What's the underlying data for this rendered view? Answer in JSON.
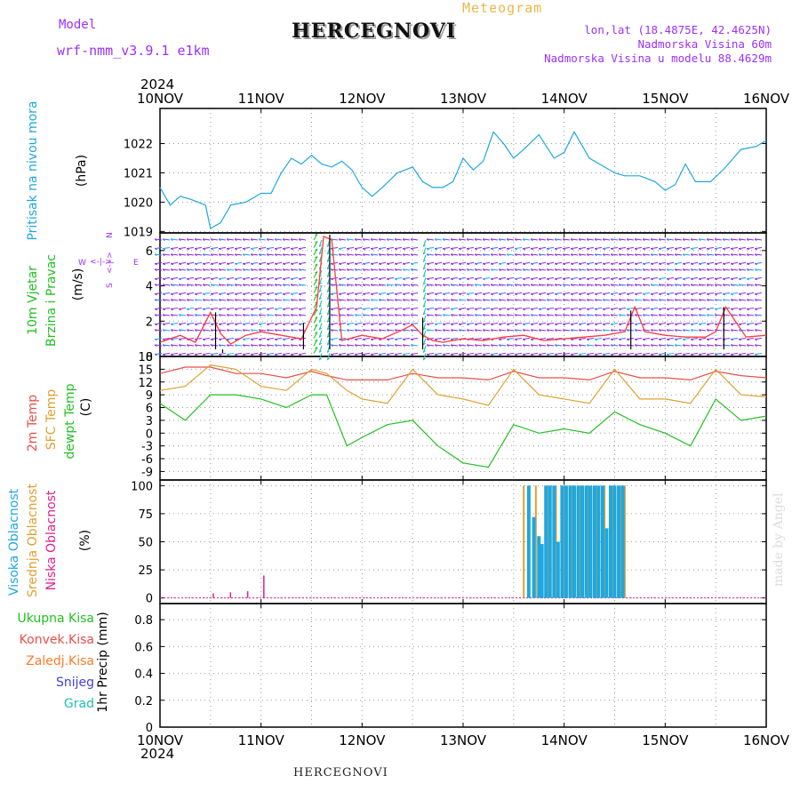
{
  "header": {
    "model_label": "Model",
    "model_value": "wrf-nmm_v3.9.1  e1km",
    "meteogram": "Meteogram",
    "station": "HERCEGNOVI",
    "lonlat": "lon,lat (18.4875E, 42.4625N)",
    "elevation": "Nadmorska Visina 60m",
    "model_elevation": "Nadmorska Visina u modelu 88.4629m",
    "year": "2024"
  },
  "footer": {
    "station": "HERCEGNOVI",
    "credit": "made by Angel"
  },
  "colors": {
    "pressure": "#1ea7e1",
    "temp2m": "#e8504a",
    "sfc": "#e0a030",
    "dewpt": "#22c022",
    "high_cloud": "#1ea7e1",
    "mid_cloud": "#e0a030",
    "low_cloud": "#e0208a",
    "wind_speed": "#ff3b3b",
    "wind_arrow": "#8a2be2",
    "precip_total": "#22c022",
    "precip_conv": "#e8504a",
    "precip_ice": "#ff7a2a",
    "precip_snow": "#4040e0",
    "precip_grad": "#20c0b0"
  },
  "chart_data": [
    {
      "panel": "pressure",
      "type": "line",
      "ylabel": [
        "Pritisak na nivou mora",
        "(hPa)"
      ],
      "yticks": [
        1019,
        1020,
        1021,
        1022
      ],
      "ylim": [
        1018.95,
        1023.2
      ],
      "x_ticks": [
        "10NOV",
        "11NOV",
        "12NOV",
        "13NOV",
        "14NOV",
        "15NOV",
        "16NOV"
      ],
      "x": [
        0,
        0.1,
        0.2,
        0.3,
        0.45,
        0.5,
        0.6,
        0.7,
        0.85,
        1.0,
        1.1,
        1.2,
        1.3,
        1.4,
        1.5,
        1.6,
        1.7,
        1.8,
        1.9,
        2.0,
        2.1,
        2.2,
        2.35,
        2.5,
        2.6,
        2.7,
        2.8,
        2.9,
        3.0,
        3.1,
        3.2,
        3.3,
        3.4,
        3.5,
        3.6,
        3.75,
        3.9,
        4.0,
        4.1,
        4.25,
        4.4,
        4.5,
        4.6,
        4.75,
        4.9,
        5.0,
        5.1,
        5.2,
        5.3,
        5.45,
        5.6,
        5.75,
        5.9,
        6.0
      ],
      "series": [
        {
          "values": [
            1020.5,
            1019.9,
            1020.2,
            1020.1,
            1019.9,
            1019.1,
            1019.3,
            1019.9,
            1020.0,
            1020.3,
            1020.3,
            1021.0,
            1021.5,
            1021.3,
            1021.6,
            1021.3,
            1021.2,
            1021.4,
            1021.1,
            1020.5,
            1020.2,
            1020.5,
            1021.0,
            1021.2,
            1020.7,
            1020.5,
            1020.5,
            1020.7,
            1021.5,
            1021.1,
            1021.4,
            1022.4,
            1022.0,
            1021.5,
            1021.8,
            1022.3,
            1021.5,
            1021.7,
            1022.4,
            1021.5,
            1021.2,
            1021.0,
            1020.9,
            1020.9,
            1020.7,
            1020.4,
            1020.6,
            1021.3,
            1020.7,
            1020.7,
            1021.2,
            1021.8,
            1021.9,
            1022.1
          ]
        }
      ]
    },
    {
      "panel": "wind",
      "type": "line",
      "ylabel": [
        "10m Vjetar",
        "Brzina i Pravac",
        "(m/s)"
      ],
      "compass": [
        "W",
        "E",
        "S",
        "N"
      ],
      "yticks": [
        0,
        2,
        4,
        6
      ],
      "ylim": [
        0,
        7.0
      ],
      "x": [
        0,
        0.2,
        0.35,
        0.5,
        0.6,
        0.7,
        0.85,
        1.0,
        1.2,
        1.4,
        1.55,
        1.62,
        1.7,
        1.8,
        2.0,
        2.2,
        2.4,
        2.5,
        2.6,
        2.7,
        2.8,
        3.0,
        3.2,
        3.4,
        3.6,
        3.8,
        4.0,
        4.2,
        4.4,
        4.6,
        4.7,
        4.8,
        5.0,
        5.2,
        5.4,
        5.5,
        5.6,
        5.8,
        6.0
      ],
      "series": [
        {
          "name": "speed",
          "values": [
            0.8,
            1.2,
            0.8,
            2.5,
            1.3,
            0.7,
            1.2,
            1.4,
            1.2,
            1.0,
            2.8,
            6.8,
            6.6,
            0.9,
            1.2,
            1.0,
            1.5,
            1.8,
            1.2,
            0.9,
            0.8,
            1.0,
            0.9,
            1.1,
            1.2,
            0.9,
            1.0,
            1.1,
            1.2,
            1.4,
            2.8,
            1.4,
            1.2,
            1.1,
            1.1,
            1.4,
            2.8,
            1.1,
            1.2
          ]
        }
      ]
    },
    {
      "panel": "temperature",
      "type": "line",
      "ylabel": [
        "2m Temp",
        "SFC Temp",
        "dewpt Temp",
        "(C)"
      ],
      "yticks": [
        -9,
        -6,
        -3,
        0,
        3,
        6,
        9,
        12,
        15,
        18
      ],
      "ylim": [
        -11,
        18
      ],
      "x": [
        0,
        0.25,
        0.5,
        0.75,
        1.0,
        1.25,
        1.5,
        1.65,
        1.85,
        2.0,
        2.25,
        2.5,
        2.75,
        3.0,
        3.25,
        3.5,
        3.75,
        4.0,
        4.25,
        4.5,
        4.75,
        5.0,
        5.25,
        5.5,
        5.75,
        6.0
      ],
      "series": [
        {
          "name": "2m Temp",
          "values": [
            14,
            15.5,
            15.5,
            14,
            14,
            13,
            14.5,
            13.5,
            12.5,
            12.5,
            12.5,
            14,
            13,
            13,
            12.5,
            14.5,
            13,
            13,
            12.5,
            14.5,
            13,
            13,
            12.5,
            14.5,
            13.5,
            13
          ]
        },
        {
          "name": "SFC Temp",
          "values": [
            10,
            11,
            16,
            15,
            11,
            10,
            15,
            14,
            10,
            8,
            7,
            15,
            9,
            8,
            6.5,
            15,
            9,
            8,
            7,
            15,
            8,
            8,
            7,
            15,
            9,
            8.5
          ]
        },
        {
          "name": "dewpt Temp",
          "values": [
            7,
            3,
            9,
            9,
            8,
            6,
            9,
            9,
            -3,
            -1,
            2,
            3,
            -3,
            -7,
            -8,
            2,
            0,
            1,
            0,
            5,
            2,
            0,
            -3,
            8,
            3,
            4
          ]
        }
      ]
    },
    {
      "panel": "cloud",
      "type": "bar",
      "ylabel": [
        "Visoka Oblacnost",
        "Srednja Oblacnost",
        "Niska Oblacnost",
        "(%)"
      ],
      "yticks": [
        0,
        25,
        50,
        75,
        100
      ],
      "ylim": [
        -5,
        105
      ],
      "high": {
        "x": [
          3.65,
          3.7,
          3.75,
          3.78,
          3.82,
          3.86,
          3.9,
          3.94,
          3.98,
          4.02,
          4.06,
          4.1,
          4.14,
          4.18,
          4.22,
          4.26,
          4.3,
          4.34,
          4.38,
          4.42,
          4.46,
          4.5,
          4.54,
          4.58
        ],
        "values": [
          100,
          72,
          55,
          48,
          100,
          100,
          100,
          50,
          100,
          100,
          100,
          100,
          100,
          100,
          100,
          100,
          100,
          100,
          100,
          62,
          100,
          100,
          100,
          100
        ]
      },
      "mid": {
        "x": [
          3.6,
          3.72,
          3.84,
          3.92,
          4.0,
          4.08,
          4.16,
          4.24,
          4.32,
          4.4,
          4.48,
          4.56,
          4.6
        ],
        "values": [
          100,
          100,
          100,
          100,
          100,
          100,
          100,
          100,
          100,
          100,
          100,
          100,
          100
        ]
      },
      "low": {
        "x": [
          0.53,
          0.7,
          0.87,
          1.03
        ],
        "values": [
          4,
          5,
          6,
          20
        ]
      }
    },
    {
      "panel": "precip",
      "type": "bar",
      "ylabel": [
        "1hr Precip (mm)"
      ],
      "legend": [
        "Ukupna Kisa",
        "Konvek.Kisa",
        "Zaledj.Kisa",
        "Snijeg",
        "Grad"
      ],
      "yticks": [
        0,
        0.2,
        0.4,
        0.6,
        0.8
      ],
      "ylim": [
        0,
        0.92
      ],
      "values": []
    }
  ]
}
